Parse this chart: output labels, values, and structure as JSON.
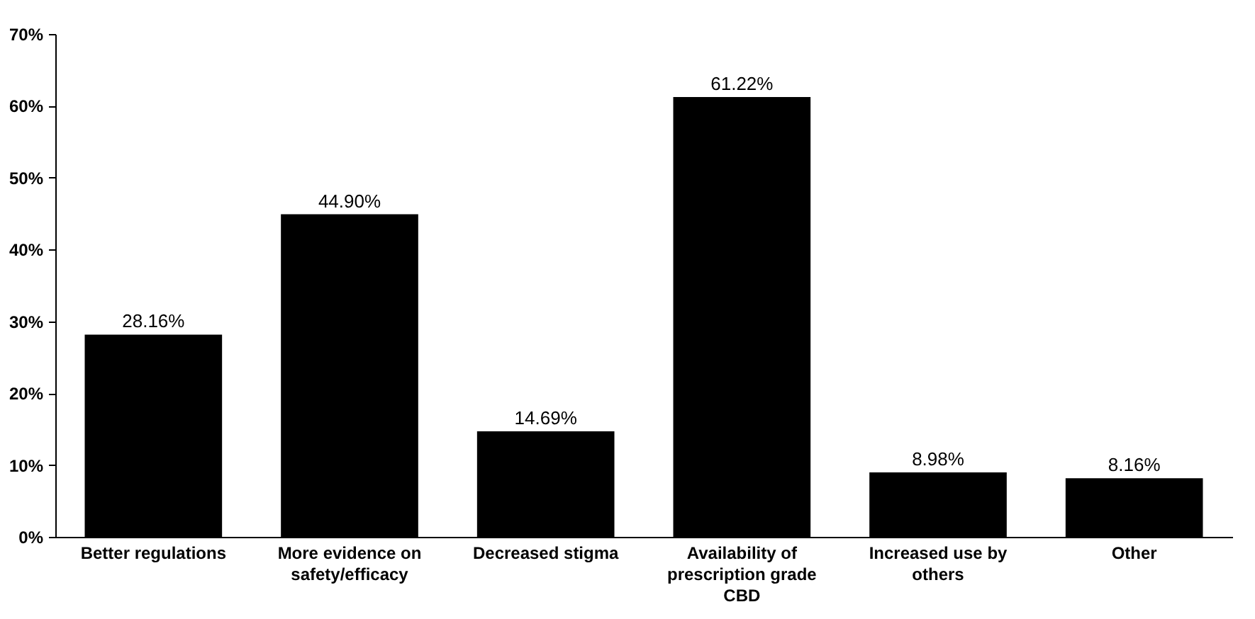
{
  "chart_data": {
    "type": "bar",
    "categories": [
      "Better regulations",
      "More evidence on safety/efficacy",
      "Decreased stigma",
      "Availability of prescription grade CBD",
      "Increased use by others",
      "Other"
    ],
    "values": [
      28.16,
      44.9,
      14.69,
      61.22,
      8.98,
      8.16
    ],
    "value_labels": [
      "28.16%",
      "44.90%",
      "14.69%",
      "61.22%",
      "8.98%",
      "8.16%"
    ],
    "color": "#000000",
    "ylim": [
      0,
      70
    ],
    "yticks": [
      {
        "value": 0,
        "label": "0%"
      },
      {
        "value": 10,
        "label": "10%"
      },
      {
        "value": 20,
        "label": "20%"
      },
      {
        "value": 30,
        "label": "30%"
      },
      {
        "value": 40,
        "label": "40%"
      },
      {
        "value": 50,
        "label": "50%"
      },
      {
        "value": 60,
        "label": "60%"
      },
      {
        "value": 70,
        "label": "70%"
      }
    ],
    "grid": false
  }
}
